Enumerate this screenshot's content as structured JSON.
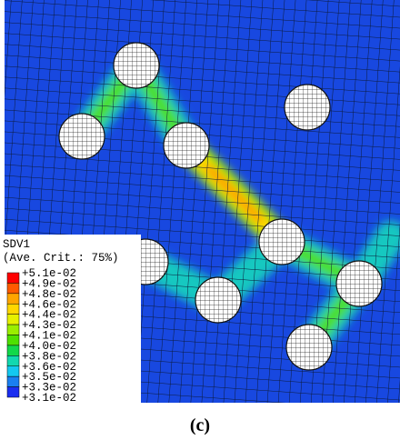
{
  "legend": {
    "title": "SDV1",
    "subtitle": "(Ave. Crit.: 75%)",
    "levels": [
      "+5.1e-02",
      "+4.9e-02",
      "+4.8e-02",
      "+4.6e-02",
      "+4.4e-02",
      "+4.3e-02",
      "+4.1e-02",
      "+4.0e-02",
      "+3.8e-02",
      "+3.6e-02",
      "+3.5e-02",
      "+3.3e-02",
      "+3.1e-02"
    ],
    "colors": [
      "#ff0000",
      "#ff5a00",
      "#ffa500",
      "#ffd700",
      "#e6f000",
      "#9aee00",
      "#4ee000",
      "#12d84a",
      "#12d8b0",
      "#14c8f0",
      "#1a7ff0",
      "#1a2ef0"
    ]
  },
  "caption": "(c)"
}
